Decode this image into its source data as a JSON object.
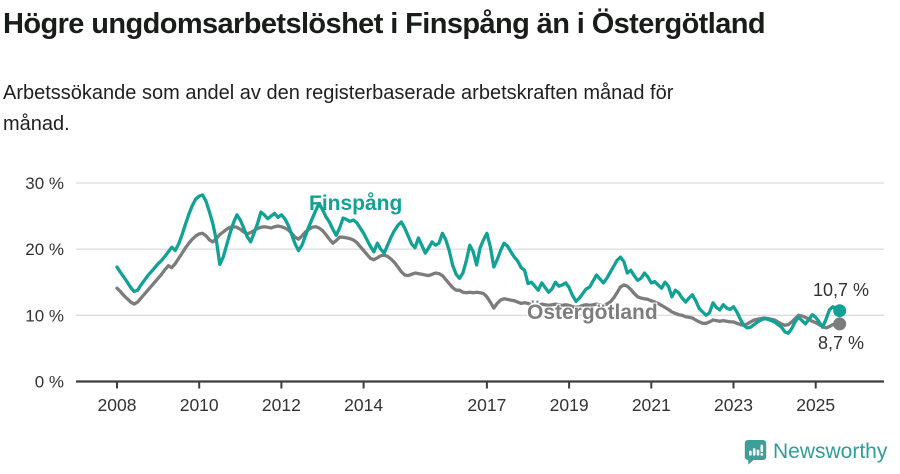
{
  "header": {
    "title": "Högre ungdomsarbetslöshet i Finspång än i Östergötland",
    "subtitle_line1": "Arbetssökande som andel av den registerbaserade arbetskraften månad för",
    "subtitle_line2": "månad."
  },
  "chart_data": {
    "type": "line",
    "title": "Högre ungdomsarbetslöshet i Finspång än i Östergötland",
    "subtitle": "Arbetssökande som andel av den registerbaserade arbetskraften månad för månad.",
    "x_unit": "month",
    "x_start": "2008-01",
    "x_end": "2025-08",
    "ylim": [
      0,
      31.5
    ],
    "grid": "horizontal",
    "axis_color": "#3d3d3d",
    "grid_color": "#dcdcdc",
    "tick_label_color": "#333333",
    "yticks": [
      {
        "value": 0,
        "label": "0 %"
      },
      {
        "value": 10,
        "label": "10 %"
      },
      {
        "value": 20,
        "label": "20 %"
      },
      {
        "value": 30,
        "label": "30 %"
      }
    ],
    "xticks": [
      {
        "year": 2008,
        "label": "2008"
      },
      {
        "year": 2010,
        "label": "2010"
      },
      {
        "year": 2012,
        "label": "2012"
      },
      {
        "year": 2014,
        "label": "2014"
      },
      {
        "year": 2017,
        "label": "2017"
      },
      {
        "year": 2019,
        "label": "2019"
      },
      {
        "year": 2021,
        "label": "2021"
      },
      {
        "year": 2023,
        "label": "2023"
      },
      {
        "year": 2025,
        "label": "2025"
      }
    ],
    "series": [
      {
        "name": "Finspång",
        "color": "#12a195",
        "end_value_label": "10,7 %",
        "values": [
          17.3,
          16.5,
          15.8,
          15.0,
          14.2,
          13.6,
          13.8,
          14.6,
          15.3,
          16.0,
          16.6,
          17.2,
          17.8,
          18.3,
          18.9,
          19.6,
          20.3,
          19.8,
          20.8,
          22.2,
          23.8,
          25.3,
          26.6,
          27.6,
          28.0,
          28.2,
          27.2,
          25.6,
          23.8,
          21.4,
          17.7,
          18.8,
          20.6,
          22.4,
          24.0,
          25.2,
          24.4,
          23.2,
          21.9,
          21.1,
          22.4,
          23.8,
          25.6,
          25.2,
          24.6,
          25.0,
          25.4,
          24.8,
          25.2,
          24.6,
          23.6,
          22.2,
          20.8,
          19.8,
          20.6,
          22.0,
          23.4,
          24.6,
          25.8,
          26.9,
          26.0,
          24.9,
          24.1,
          23.0,
          22.1,
          23.2,
          24.7,
          24.5,
          24.2,
          24.4,
          24.0,
          23.2,
          22.4,
          21.4,
          20.4,
          19.6,
          20.9,
          20.0,
          19.4,
          20.6,
          21.8,
          22.8,
          23.6,
          24.1,
          23.2,
          22.0,
          20.8,
          20.2,
          21.7,
          20.6,
          19.4,
          20.2,
          21.1,
          20.6,
          20.9,
          22.4,
          21.4,
          19.8,
          17.6,
          16.2,
          15.6,
          16.4,
          18.3,
          20.6,
          19.6,
          17.6,
          20.2,
          21.4,
          22.4,
          20.4,
          17.3,
          18.4,
          19.8,
          20.9,
          20.5,
          19.6,
          18.8,
          18.2,
          17.2,
          16.8,
          14.8,
          15.0,
          14.4,
          13.8,
          14.9,
          14.2,
          13.5,
          14.0,
          15.0,
          14.4,
          14.6,
          14.9,
          14.2,
          13.0,
          12.1,
          12.6,
          13.3,
          14.0,
          14.3,
          15.2,
          16.1,
          15.5,
          14.9,
          15.6,
          16.5,
          17.4,
          18.3,
          18.8,
          18.1,
          16.4,
          16.8,
          16.0,
          15.3,
          15.6,
          16.4,
          15.8,
          14.9,
          15.1,
          14.6,
          14.1,
          15.0,
          14.4,
          12.8,
          13.8,
          13.4,
          12.6,
          12.0,
          12.6,
          13.1,
          12.2,
          11.0,
          10.5,
          10.0,
          10.4,
          11.9,
          11.2,
          10.8,
          11.6,
          11.1,
          10.9,
          11.3,
          10.5,
          9.4,
          8.5,
          8.1,
          8.2,
          8.6,
          9.0,
          9.3,
          9.5,
          9.4,
          9.2,
          9.0,
          8.6,
          8.2,
          7.5,
          7.3,
          8.0,
          9.0,
          9.7,
          9.2,
          8.7,
          9.4,
          10.1,
          9.7,
          9.0,
          8.2,
          9.4,
          10.8,
          11.3,
          11.0,
          10.7
        ]
      },
      {
        "name": "Östergötland",
        "color": "#7c7c7c",
        "end_value_label": "8,7 %",
        "values": [
          14.1,
          13.6,
          13.0,
          12.5,
          12.0,
          11.7,
          12.0,
          12.6,
          13.2,
          13.8,
          14.4,
          15.0,
          15.6,
          16.2,
          16.9,
          17.5,
          17.2,
          17.8,
          18.6,
          19.4,
          20.2,
          20.9,
          21.5,
          22.0,
          22.3,
          22.4,
          22.0,
          21.4,
          21.1,
          21.6,
          22.2,
          22.6,
          23.0,
          23.3,
          23.4,
          23.3,
          23.0,
          22.6,
          22.3,
          22.5,
          22.8,
          23.1,
          23.3,
          23.4,
          23.3,
          23.2,
          23.4,
          23.5,
          23.4,
          23.2,
          22.9,
          22.4,
          21.8,
          21.5,
          22.0,
          22.6,
          23.0,
          23.3,
          23.4,
          23.2,
          22.8,
          22.2,
          21.5,
          20.9,
          21.3,
          21.8,
          21.8,
          21.7,
          21.6,
          21.4,
          21.0,
          20.4,
          19.8,
          19.2,
          18.6,
          18.4,
          18.7,
          19.0,
          19.1,
          18.9,
          18.5,
          18.0,
          17.3,
          16.6,
          16.1,
          16.0,
          16.2,
          16.4,
          16.3,
          16.2,
          16.1,
          16.0,
          16.2,
          16.4,
          16.3,
          16.0,
          15.4,
          14.8,
          14.2,
          13.8,
          13.8,
          13.5,
          13.4,
          13.5,
          13.4,
          13.5,
          13.4,
          13.3,
          12.8,
          12.0,
          11.1,
          11.8,
          12.3,
          12.5,
          12.4,
          12.3,
          12.2,
          12.0,
          11.8,
          11.9,
          11.8,
          11.6,
          11.4,
          11.5,
          11.7,
          11.6,
          11.5,
          11.6,
          11.7,
          11.6,
          11.5,
          11.6,
          11.5,
          11.3,
          11.2,
          11.3,
          11.5,
          11.6,
          11.5,
          11.6,
          11.7,
          11.6,
          11.5,
          11.7,
          12.0,
          12.6,
          13.4,
          14.3,
          14.6,
          14.4,
          13.9,
          13.3,
          12.8,
          12.6,
          12.5,
          12.4,
          12.2,
          12.0,
          11.8,
          11.5,
          11.2,
          10.9,
          10.5,
          10.3,
          10.1,
          10.0,
          9.8,
          9.7,
          9.6,
          9.3,
          9.0,
          8.8,
          8.8,
          9.0,
          9.3,
          9.2,
          9.1,
          9.2,
          9.1,
          9.0,
          9.0,
          8.8,
          8.6,
          8.5,
          8.7,
          9.0,
          9.3,
          9.4,
          9.5,
          9.6,
          9.5,
          9.4,
          9.3,
          9.0,
          8.7,
          8.5,
          8.6,
          9.0,
          9.5,
          10.0,
          9.9,
          9.7,
          9.4,
          9.1,
          8.9,
          8.6,
          8.3,
          8.1,
          8.3,
          8.6,
          8.7,
          8.7
        ]
      }
    ]
  },
  "annotations": {
    "finspang_label": "Finspång",
    "ostergotland_label": "Östergötland",
    "finspang_end_value": "10,7 %",
    "ostergotland_end_value": "8,7 %"
  },
  "footer": {
    "brand": "Newsworthy",
    "brand_color": "#2f9e97"
  }
}
